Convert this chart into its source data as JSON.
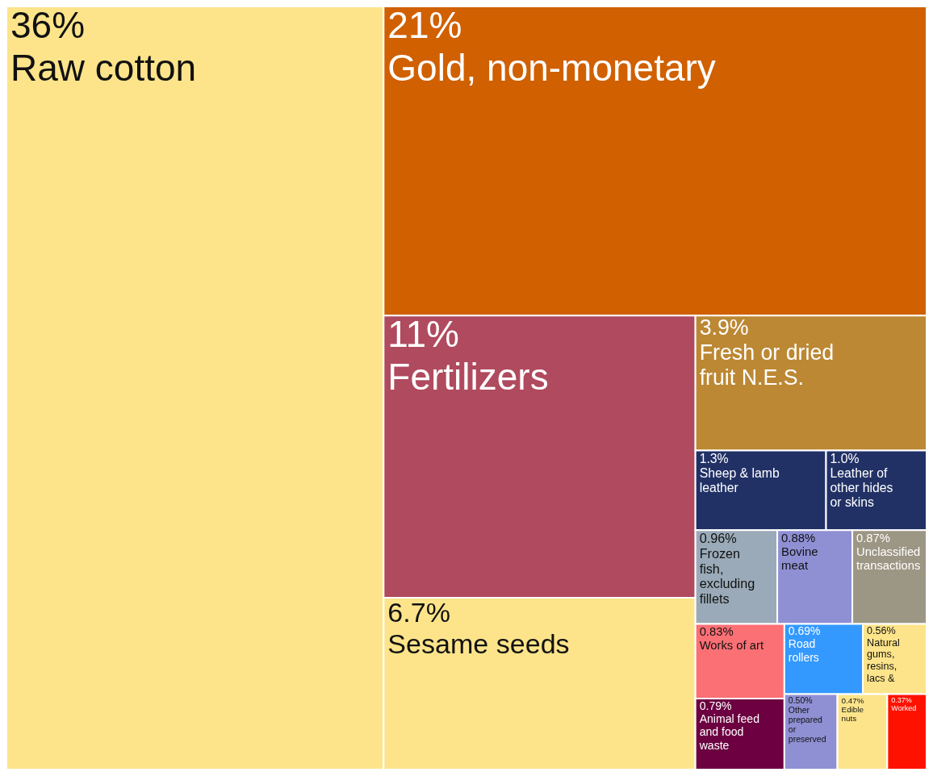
{
  "chart_data": {
    "type": "other",
    "categories": [
      "Raw cotton",
      "Gold, non-monetary",
      "Fertilizers",
      "Sesame seeds",
      "Fresh or dried fruit N.E.S.",
      "Sheep & lamb leather",
      "Leather of other hides or skins",
      "Frozen fish, excluding fillets",
      "Bovine meat",
      "Unclassified transactions",
      "Works of art",
      "Animal feed and food waste",
      "Road rollers",
      "Natural gums, resins, lacs &",
      "Other prepared or preserved",
      "Edible nuts",
      "Worked"
    ],
    "values": [
      36,
      21,
      11,
      6.7,
      3.9,
      1.3,
      1.0,
      0.96,
      0.88,
      0.87,
      0.83,
      0.79,
      0.69,
      0.56,
      0.5,
      0.47,
      0.37
    ],
    "value_labels": [
      "36%",
      "21%",
      "11%",
      "6.7%",
      "3.9%",
      "1.3%",
      "1.0%",
      "0.96%",
      "0.88%",
      "0.87%",
      "0.83%",
      "0.79%",
      "0.69%",
      "0.56%",
      "0.50%",
      "0.47%",
      "0.37%"
    ],
    "colors": [
      "#fde48a",
      "#d06000",
      "#b04a5e",
      "#fde48a",
      "#bc8834",
      "#213166",
      "#213166",
      "#9aaab8",
      "#8f90d4",
      "#9c9684",
      "#fb7075",
      "#6c0041",
      "#3399ff",
      "#fde48a",
      "#8f90d4",
      "#fde48a",
      "#ff1100"
    ]
  }
}
